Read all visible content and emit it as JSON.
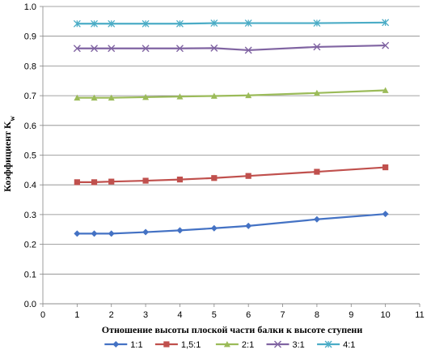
{
  "chart_data": {
    "type": "line",
    "xlabel": "Отношение высоты плоской части балки к высоте ступени",
    "ylabel": "Коэффициент K",
    "ylabel_sub": "w",
    "xlim": [
      0,
      11
    ],
    "ylim": [
      0,
      1
    ],
    "x_ticks": [
      0,
      1,
      2,
      3,
      4,
      5,
      6,
      7,
      8,
      9,
      10,
      11
    ],
    "y_ticks": [
      "0.0",
      "0.1",
      "0.2",
      "0.3",
      "0.4",
      "0.5",
      "0.6",
      "0.7",
      "0.8",
      "0.9",
      "1.0"
    ],
    "grid": "horizontal",
    "legend_position": "bottom",
    "x": [
      1,
      1.5,
      2,
      3,
      4,
      5,
      6,
      8,
      10
    ],
    "series": [
      {
        "name": "1:1",
        "color": "#4472C4",
        "marker": "diamond",
        "values": [
          0.236,
          0.236,
          0.236,
          0.241,
          0.247,
          0.254,
          0.262,
          0.284,
          0.302
        ]
      },
      {
        "name": "1,5:1",
        "color": "#C0504D",
        "marker": "square",
        "values": [
          0.409,
          0.409,
          0.411,
          0.414,
          0.418,
          0.423,
          0.43,
          0.444,
          0.459
        ]
      },
      {
        "name": "2:1",
        "color": "#9BBB59",
        "marker": "triangle",
        "values": [
          0.693,
          0.693,
          0.693,
          0.695,
          0.697,
          0.699,
          0.701,
          0.709,
          0.718
        ]
      },
      {
        "name": "3:1",
        "color": "#8064A2",
        "marker": "x",
        "values": [
          0.859,
          0.859,
          0.859,
          0.859,
          0.859,
          0.86,
          0.853,
          0.864,
          0.869
        ]
      },
      {
        "name": "4:1",
        "color": "#4BACC6",
        "marker": "star",
        "values": [
          0.942,
          0.942,
          0.942,
          0.942,
          0.942,
          0.944,
          0.944,
          0.944,
          0.946
        ]
      }
    ]
  }
}
